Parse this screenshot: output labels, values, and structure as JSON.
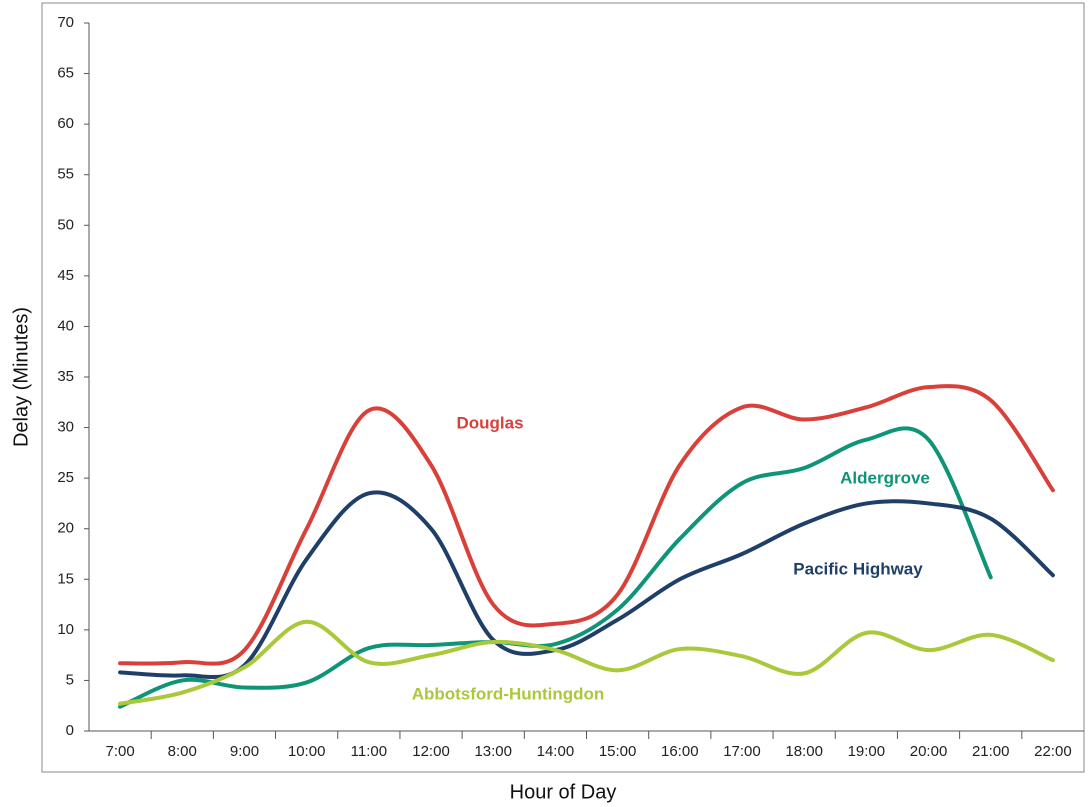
{
  "chart_data": {
    "type": "line",
    "x_label": "Hour of Day",
    "y_label": "Delay (Minutes)",
    "categories": [
      "7:00",
      "8:00",
      "9:00",
      "10:00",
      "11:00",
      "12:00",
      "13:00",
      "14:00",
      "15:00",
      "16:00",
      "17:00",
      "18:00",
      "19:00",
      "20:00",
      "21:00",
      "22:00"
    ],
    "series": [
      {
        "name": "Douglas",
        "color": "#d9403a",
        "values": [
          6.7,
          6.8,
          8,
          20,
          31.7,
          26.3,
          12.5,
          10.6,
          13.5,
          26.3,
          32,
          30.8,
          32,
          34,
          32.7,
          23.8
        ]
      },
      {
        "name": "Aldergrove",
        "color": "#0e9477",
        "values": [
          2.4,
          5,
          4.3,
          4.8,
          8.2,
          8.5,
          8.8,
          8.6,
          12,
          19,
          24.5,
          26,
          28.8,
          28.8,
          15.2,
          null
        ]
      },
      {
        "name": "Pacific Highway",
        "color": "#1f3f68",
        "values": [
          5.8,
          5.5,
          6.5,
          17,
          23.5,
          20,
          9,
          8,
          11,
          15,
          17.5,
          20.5,
          22.5,
          22.5,
          21,
          15.4
        ]
      },
      {
        "name": "Abbotsford-Huntingdon",
        "color": "#a9c83a",
        "values": [
          2.7,
          3.8,
          6.3,
          10.8,
          6.8,
          7.5,
          8.8,
          8,
          6,
          8.1,
          7.4,
          5.7,
          9.7,
          8,
          9.5,
          7
        ]
      }
    ],
    "ylim": [
      0,
      70
    ],
    "yticks": [
      0,
      5,
      10,
      15,
      20,
      25,
      30,
      35,
      40,
      45,
      50,
      55,
      60,
      65,
      70
    ],
    "grid": false
  }
}
